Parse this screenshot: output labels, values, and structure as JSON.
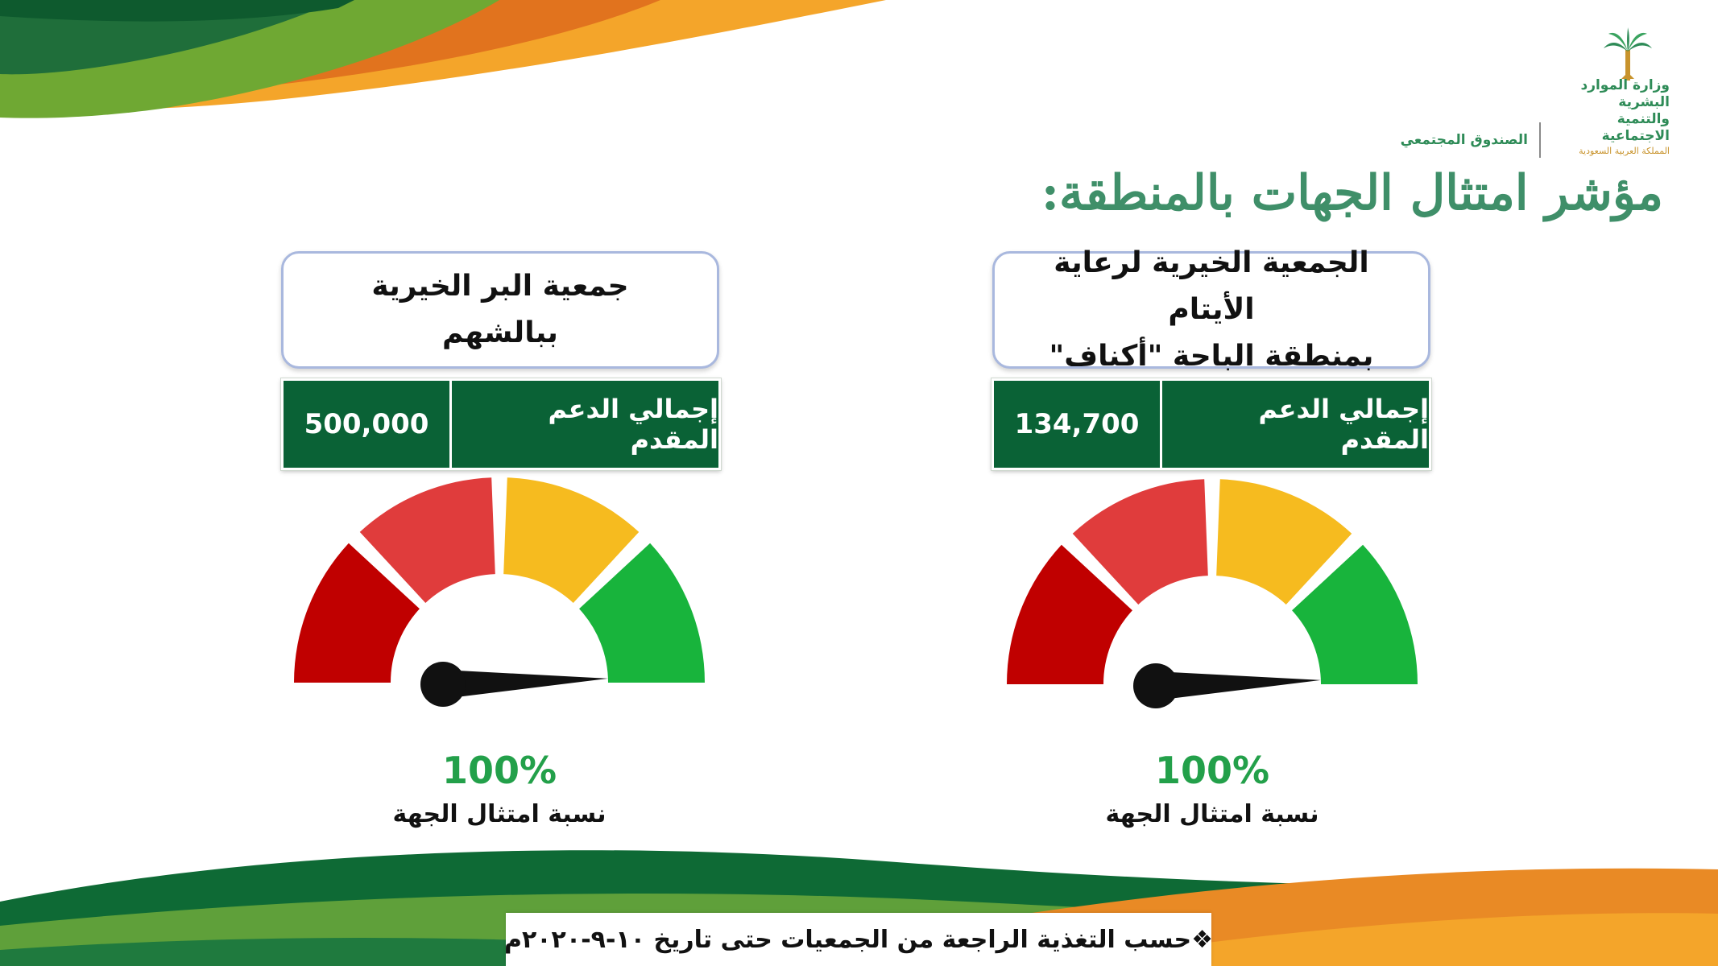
{
  "colors": {
    "title_green": "#3f8f69",
    "bar_green": "#0a6236",
    "percent_green": "#23a04a",
    "gauge_red_dark": "#c00000",
    "gauge_red": "#e03c3c",
    "gauge_yellow": "#f6bb1f",
    "gauge_green": "#18b43c",
    "needle": "#111111"
  },
  "logo": {
    "ministry_line1": "وزارة الموارد البشرية",
    "ministry_line2": "والتنمية الاجتماعية",
    "ministry_line3": "المملكة العربية السعودية",
    "fund_name": "الصندوق المجتمعي",
    "icon": "palm-tree-icon"
  },
  "title": "مؤشر امتثال الجهات بالمنطقة:",
  "organizations": [
    {
      "name_line1": "الجمعية الخيرية لرعاية الأيتام",
      "name_line2": "بمنطقة الباحة \"أكناف\"",
      "support_label": "إجمالي الدعم المقدم",
      "support_value": "134,700",
      "compliance_value": 100,
      "compliance_percent": "100%",
      "compliance_label": "نسبة امتثال الجهة"
    },
    {
      "name_line1": "جمعية البر الخيرية",
      "name_line2": "ببالشهم",
      "support_label": "إجمالي الدعم المقدم",
      "support_value": "500,000",
      "compliance_value": 100,
      "compliance_percent": "100%",
      "compliance_label": "نسبة امتثال الجهة"
    }
  ],
  "footnote": "❖حسب التغذية الراجعة من الجمعيات حتى تاريخ ١٠-٩-٢٠٢٠م"
}
